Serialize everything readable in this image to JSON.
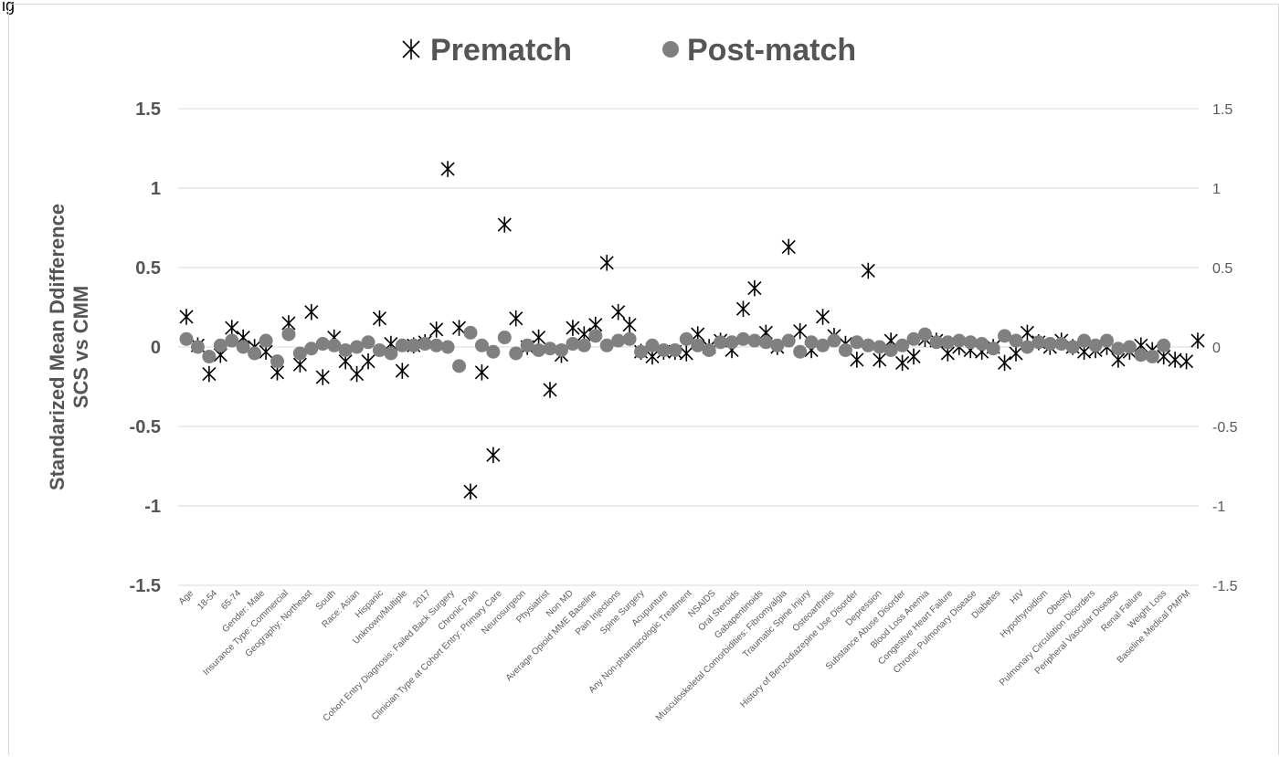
{
  "page_label": "ig",
  "chart_data": {
    "type": "scatter",
    "title": "",
    "ylabel_lines": [
      "Standarized Mean Ddifference",
      "SCS vs CMM"
    ],
    "ylim": [
      -1.5,
      1.5
    ],
    "yticks": [
      1.5,
      1,
      0.5,
      0,
      -0.5,
      -1,
      -1.5
    ],
    "ytick_labels": [
      "1.5",
      "1",
      "0.5",
      "0",
      "-0.5",
      "-1",
      "-1.5"
    ],
    "secondary_axis": true,
    "grid": true,
    "legend_position": "top",
    "categories": [
      "Age",
      "18-54",
      "65-74",
      "Gender: Male",
      "Insurance Type: Commercial",
      "Geography: Northeast",
      "South",
      "Race: Asian",
      "Hispanic",
      "Unknown/Multiple",
      "2017",
      "Cohort Entry Diagnosis: Failed Back Surgery",
      "Chronic Pain",
      "Clinician Type at Cohort Entry: Primary Care",
      "Neurosurgeon",
      "Physiatrist",
      "Non MD",
      "Average Opioid MME Baseline",
      "Pain Injections",
      "Spine Surgery",
      "Acupunture",
      "Any Non-pharmacologic Treatment",
      "NSAIDS",
      "Oral Steroids",
      "Gabapentinoids",
      "Musculoskeletal Comorbidities: Fibromyalgia",
      "Traumatic Spine Injury",
      "Osteoarthritis",
      "History of Benzodiazepine Use Disorder",
      "Depression",
      "Substance Abuse Disorder",
      "Blood Loss Anemia",
      "Congestive Heart Failure",
      "Chronic Pulmonary Disease",
      "Diabetes",
      "HIV",
      "Hypothyroidism",
      "Obesity",
      "Pulmonary Circulation Disorders",
      "Peripheral Vascular Disease",
      "Renal Failure",
      "Weight Loss",
      "Baseline Medical PMPM"
    ],
    "series": [
      {
        "name": "Prematch",
        "marker": "asterisk",
        "color": "#000000",
        "values": [
          0.19,
          0.01,
          -0.17,
          -0.05,
          0.12,
          0.06,
          0.0,
          -0.03,
          -0.16,
          0.15,
          -0.11,
          0.22,
          -0.19,
          0.06,
          -0.09,
          -0.17,
          -0.09,
          0.18,
          0.02,
          -0.15,
          0.01,
          0.03,
          0.11,
          1.12,
          0.12,
          -0.91,
          -0.16,
          -0.68,
          0.77,
          0.18,
          0.0,
          0.06,
          -0.27,
          -0.05,
          0.12,
          0.08,
          0.14,
          0.53,
          0.22,
          0.14,
          -0.03,
          -0.06,
          -0.03,
          -0.03,
          -0.04,
          0.08,
          0.0,
          0.04,
          -0.02,
          0.24,
          0.37,
          0.09,
          0.0,
          0.63,
          0.1,
          -0.02,
          0.19,
          0.07,
          0.02,
          -0.08,
          0.48,
          -0.08,
          0.04,
          -0.1,
          -0.06,
          0.05,
          0.04,
          -0.04,
          0.0,
          -0.02,
          -0.03,
          0.0,
          -0.1,
          -0.04,
          0.09,
          0.03,
          0.0,
          0.04,
          0.0,
          -0.03,
          -0.02,
          0.0,
          -0.08,
          -0.03,
          0.01,
          -0.02,
          -0.06,
          -0.08,
          -0.09,
          0.04
        ]
      },
      {
        "name": "Post-match",
        "marker": "circle",
        "color": "#808080",
        "values": [
          0.05,
          0.0,
          -0.06,
          0.01,
          0.04,
          0.0,
          -0.04,
          0.04,
          -0.09,
          0.08,
          -0.04,
          -0.01,
          0.02,
          0.01,
          -0.02,
          0.0,
          0.03,
          -0.02,
          -0.04,
          0.01,
          0.01,
          0.02,
          0.01,
          0.0,
          -0.12,
          0.09,
          0.01,
          -0.03,
          0.06,
          -0.04,
          0.01,
          -0.02,
          -0.01,
          -0.02,
          0.02,
          0.01,
          0.07,
          0.01,
          0.04,
          0.05,
          -0.03,
          0.01,
          -0.02,
          -0.02,
          0.05,
          0.01,
          -0.02,
          0.03,
          0.03,
          0.05,
          0.04,
          0.03,
          0.01,
          0.04,
          -0.03,
          0.03,
          0.01,
          0.04,
          -0.02,
          0.03,
          0.01,
          0.0,
          -0.02,
          0.01,
          0.05,
          0.08,
          0.03,
          0.03,
          0.04,
          0.03,
          0.02,
          -0.01,
          0.07,
          0.04,
          0.0,
          0.03,
          0.02,
          0.02,
          0.0,
          0.04,
          0.01,
          0.04,
          -0.01,
          0.0,
          -0.05,
          -0.06,
          0.01
        ]
      }
    ]
  }
}
